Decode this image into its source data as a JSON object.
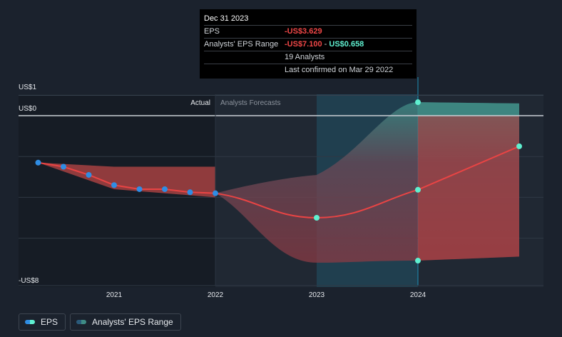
{
  "tooltip": {
    "date": "Dec 31 2023",
    "eps_label": "EPS",
    "eps_value": "-US$3.629",
    "range_label": "Analysts' EPS Range",
    "range_low": "-US$7.100",
    "range_sep": " - ",
    "range_high": "US$0.658",
    "analysts": "19 Analysts",
    "confirmed": "Last confirmed on Mar 29 2022"
  },
  "legend": {
    "eps_label": "EPS",
    "range_label": "Analysts' EPS Range"
  },
  "colors": {
    "background": "#1b222d",
    "eps_line": "#e94444",
    "eps_point": "#2f8de4",
    "forecast_point": "#5ff0d0",
    "range_negative": "#b94545",
    "range_positive": "#3e8b84",
    "highlight": "#1e90b8"
  },
  "chart_data": {
    "type": "line",
    "xlabel": "",
    "ylabel": "",
    "x_ticks": [
      2021,
      2022,
      2023,
      2024
    ],
    "y_ticks": [
      {
        "value": 1,
        "label": "US$1"
      },
      {
        "value": 0,
        "label": "US$0"
      },
      {
        "value": -8,
        "label": "-US$8"
      }
    ],
    "ylim": [
      -8,
      1
    ],
    "xlim": [
      2020.1,
      2025.1
    ],
    "divider_x": 2022.0,
    "divider_labels": {
      "left": "Actual",
      "right": "Analysts Forecasts"
    },
    "highlight_range": [
      2023.0,
      2024.0
    ],
    "series": [
      {
        "name": "EPS",
        "kind": "actual",
        "points": [
          {
            "x": 2020.25,
            "y": -2.3
          },
          {
            "x": 2020.5,
            "y": -2.5
          },
          {
            "x": 2020.75,
            "y": -2.9
          },
          {
            "x": 2021.0,
            "y": -3.4
          },
          {
            "x": 2021.25,
            "y": -3.6
          },
          {
            "x": 2021.5,
            "y": -3.6
          },
          {
            "x": 2021.75,
            "y": -3.75
          },
          {
            "x": 2022.0,
            "y": -3.8
          }
        ]
      },
      {
        "name": "EPS",
        "kind": "forecast",
        "points": [
          {
            "x": 2022.0,
            "y": -3.8
          },
          {
            "x": 2023.0,
            "y": -5.0
          },
          {
            "x": 2024.0,
            "y": -3.629
          },
          {
            "x": 2025.0,
            "y": -1.5
          }
        ]
      }
    ],
    "range_actual": [
      {
        "x": 2020.25,
        "low": -2.3,
        "high": -2.3
      },
      {
        "x": 2021.0,
        "low": -3.6,
        "high": -2.5
      },
      {
        "x": 2022.0,
        "low": -4.0,
        "high": -2.5
      }
    ],
    "range_forecast": [
      {
        "x": 2022.0,
        "low": -3.8,
        "high": -3.8
      },
      {
        "x": 2023.0,
        "low": -7.2,
        "high": -2.9
      },
      {
        "x": 2024.0,
        "low": -7.1,
        "high": 0.658
      },
      {
        "x": 2025.0,
        "low": -6.9,
        "high": 0.6
      }
    ]
  }
}
